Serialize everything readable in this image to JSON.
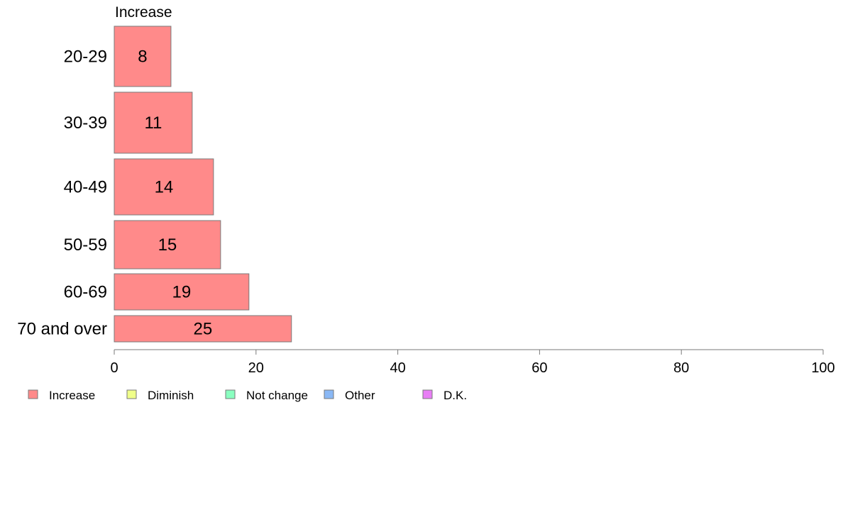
{
  "chart_data": {
    "type": "bar",
    "orientation": "horizontal",
    "series_title": "Increase",
    "categories": [
      "20-29",
      "30-39",
      "40-49",
      "50-59",
      "60-69",
      "70 and over"
    ],
    "series": [
      {
        "name": "Increase",
        "color": "#ff8a8a",
        "values": [
          8,
          11,
          14,
          15,
          19,
          25
        ]
      }
    ],
    "xlim": [
      0,
      100
    ],
    "xticks": [
      0,
      20,
      40,
      60,
      80,
      100
    ],
    "grid": false,
    "legend": {
      "placement": "bottom-left",
      "items": [
        {
          "label": "Increase",
          "color": "#ff8a8a"
        },
        {
          "label": "Diminish",
          "color": "#f0ff8a"
        },
        {
          "label": "Not change",
          "color": "#8affc0"
        },
        {
          "label": "Other",
          "color": "#8ab8f5"
        },
        {
          "label": "D.K.",
          "color": "#e87ef5"
        }
      ]
    }
  }
}
